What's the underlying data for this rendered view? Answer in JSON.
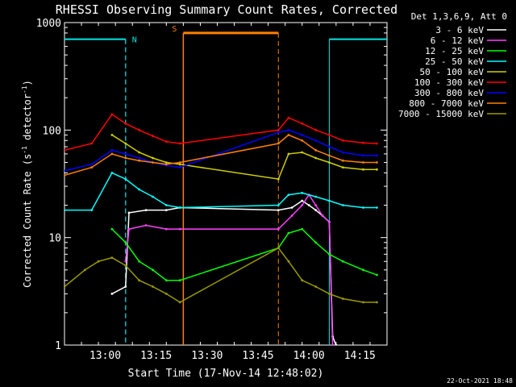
{
  "chart_data": {
    "type": "line",
    "title": "RHESSI Observing Summary Count Rates, Corrected",
    "xlabel": "Start Time (17-Nov-14 12:48:02)",
    "ylabel_main": "Corrected Count Rate (s",
    "ylabel_sup1": "-1",
    "ylabel_mid": " detector",
    "ylabel_sup2": "-1",
    "ylabel_end": ")",
    "y_scale": "log",
    "ylim": [
      1,
      1000
    ],
    "xlim_minutes": [
      0,
      95
    ],
    "x_tick_labels": [
      "13:00",
      "13:15",
      "13:30",
      "13:45",
      "14:00",
      "14:15"
    ],
    "x_tick_minutes": [
      12,
      27,
      42,
      57,
      72,
      87
    ],
    "y_tick_labels": [
      "1",
      "10",
      "100",
      "1000"
    ],
    "legend_header": "Det 1,3,6,9, Att 0",
    "footer_date": "22-Oct-2021 18:48",
    "flags": {
      "night_label": "N",
      "saa_label": "S",
      "night_color": "#00e5e5",
      "saa_color": "#ff8000",
      "night_intervals": [
        [
          0,
          18
        ],
        [
          78,
          95
        ]
      ],
      "saa_intervals": [
        [
          35,
          63
        ]
      ]
    },
    "series": [
      {
        "name": "3 - 6 keV",
        "color": "#ffffff",
        "x": [
          14,
          18,
          19,
          24,
          30,
          34,
          63,
          67,
          70,
          72,
          74,
          76,
          78,
          79,
          80
        ],
        "y": [
          3,
          3.5,
          17,
          18,
          18,
          19,
          18,
          19,
          22,
          20,
          18,
          16,
          14,
          1.2,
          1
        ]
      },
      {
        "name": "6 - 12 keV",
        "color": "#ff40ff",
        "x": [
          18,
          19,
          24,
          30,
          34,
          63,
          67,
          70,
          72,
          74,
          76,
          78,
          79
        ],
        "y": [
          6,
          12,
          13,
          12,
          12,
          12,
          16,
          20,
          25,
          20,
          16,
          14,
          1
        ]
      },
      {
        "name": "12 - 25 keV",
        "color": "#00ff00",
        "x": [
          14,
          18,
          22,
          26,
          30,
          34,
          63,
          66,
          70,
          74,
          78,
          82,
          88,
          92
        ],
        "y": [
          12,
          9,
          6,
          5,
          4,
          4,
          8,
          11,
          12,
          9,
          7,
          6,
          5,
          4.5
        ]
      },
      {
        "name": "25 - 50 keV",
        "color": "#00ffff",
        "x": [
          0,
          8,
          14,
          18,
          22,
          26,
          30,
          34,
          63,
          66,
          70,
          74,
          78,
          82,
          88,
          92
        ],
        "y": [
          18,
          18,
          40,
          35,
          28,
          24,
          20,
          19,
          20,
          25,
          26,
          24,
          22,
          20,
          19,
          19
        ]
      },
      {
        "name": "50 - 100 keV",
        "color": "#d0d000",
        "x": [
          14,
          18,
          22,
          26,
          30,
          34,
          63,
          66,
          70,
          74,
          78,
          82,
          88,
          92
        ],
        "y": [
          90,
          75,
          62,
          55,
          50,
          48,
          35,
          60,
          62,
          55,
          50,
          45,
          43,
          43
        ]
      },
      {
        "name": "100 - 300 keV",
        "color": "#ff0000",
        "x": [
          0,
          8,
          14,
          18,
          22,
          26,
          30,
          34,
          63,
          66,
          70,
          74,
          78,
          82,
          88,
          92
        ],
        "y": [
          65,
          75,
          140,
          115,
          100,
          88,
          78,
          75,
          100,
          130,
          115,
          100,
          90,
          80,
          76,
          75
        ]
      },
      {
        "name": "300 - 800 keV",
        "color": "#0000ff",
        "x": [
          0,
          8,
          14,
          18,
          22,
          26,
          30,
          34,
          63,
          66,
          70,
          74,
          78,
          82,
          88,
          92
        ],
        "y": [
          42,
          48,
          65,
          60,
          55,
          50,
          47,
          45,
          95,
          100,
          90,
          80,
          70,
          62,
          58,
          58
        ]
      },
      {
        "name": "800 - 7000 keV",
        "color": "#ff8000",
        "x": [
          0,
          8,
          14,
          18,
          22,
          26,
          30,
          34,
          63,
          66,
          70,
          74,
          78,
          82,
          88,
          92
        ],
        "y": [
          38,
          45,
          60,
          55,
          52,
          50,
          48,
          50,
          75,
          90,
          80,
          65,
          58,
          52,
          50,
          50
        ]
      },
      {
        "name": "7000 - 15000 keV",
        "color": "#9a9a00",
        "x": [
          0,
          6,
          10,
          14,
          18,
          22,
          26,
          30,
          34,
          63,
          66,
          70,
          74,
          78,
          82,
          88,
          92
        ],
        "y": [
          3.5,
          5,
          6,
          6.5,
          5.5,
          4,
          3.5,
          3,
          2.5,
          8,
          6,
          4,
          3.5,
          3,
          2.7,
          2.5,
          2.5
        ]
      }
    ]
  }
}
